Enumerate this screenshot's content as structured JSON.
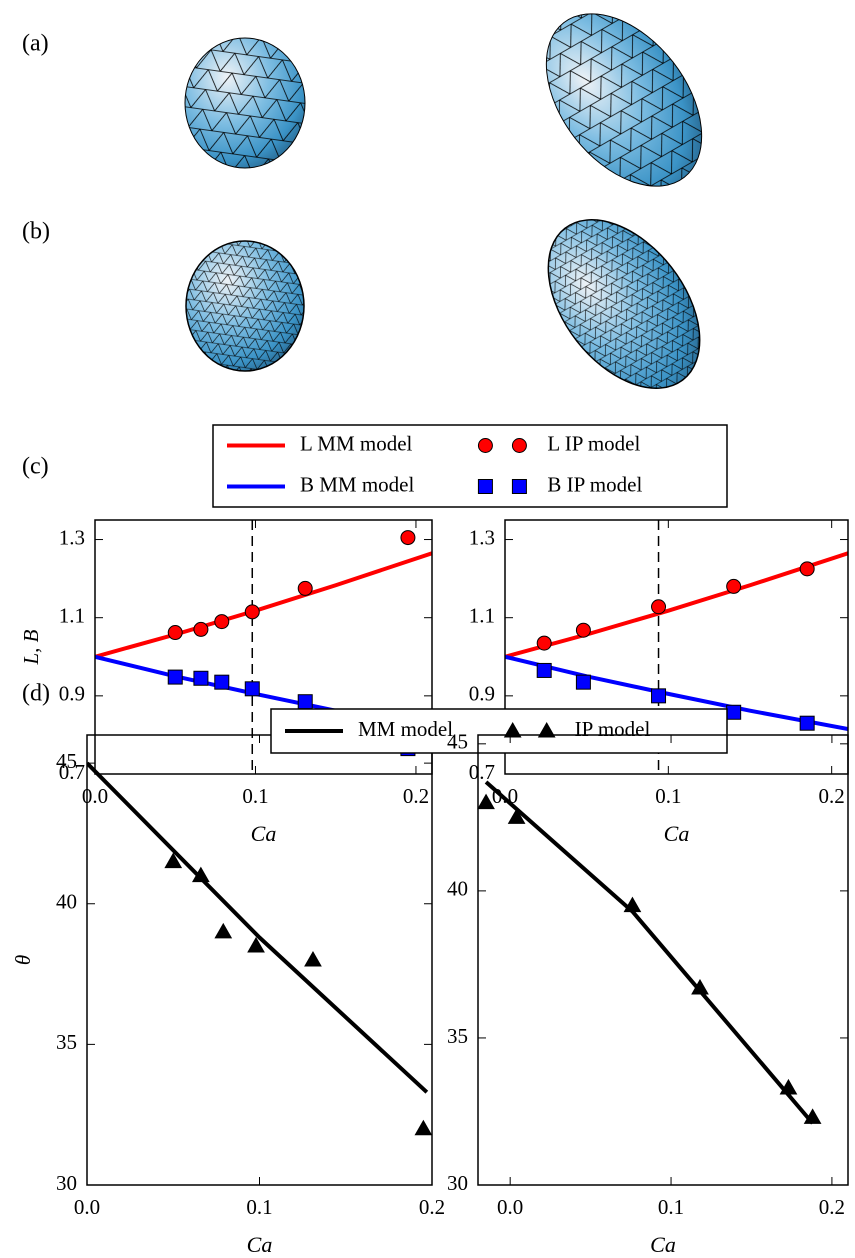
{
  "panel_labels": [
    "(a)",
    "(b)",
    "(c)",
    "(d)"
  ],
  "chart_data": [
    {
      "type": "line",
      "xlabel": "Ca",
      "ylabel": "L, B",
      "legend": true,
      "xlim": [
        0,
        0.21
      ],
      "ylim": [
        0.7,
        1.35
      ],
      "xticks": [
        {
          "value": 0,
          "label": "0.0"
        },
        {
          "value": 0.1,
          "label": "0.1"
        },
        {
          "value": 0.2,
          "label": "0.2"
        }
      ],
      "yticks": [
        0.7,
        0.9,
        1.1,
        1.3
      ],
      "vline": 0.098,
      "series": [
        {
          "name": "L MM model",
          "color": "#ff0000",
          "marker": "line",
          "x": [
            0,
            0.05,
            0.1,
            0.15,
            0.21
          ],
          "values": [
            1.0,
            1.057,
            1.118,
            1.183,
            1.265
          ]
        },
        {
          "name": "B MM model",
          "color": "#0000ff",
          "marker": "line",
          "x": [
            0,
            0.05,
            0.1,
            0.15,
            0.21
          ],
          "values": [
            1.0,
            0.95,
            0.905,
            0.862,
            0.815
          ]
        },
        {
          "name": "L IP model",
          "color": "#ff0000",
          "marker": "circle",
          "x": [
            0.05,
            0.066,
            0.079,
            0.098,
            0.131,
            0.195
          ],
          "values": [
            1.062,
            1.07,
            1.09,
            1.115,
            1.175,
            1.305
          ]
        },
        {
          "name": "B IP model",
          "color": "#0000ff",
          "marker": "square",
          "x": [
            0.05,
            0.066,
            0.079,
            0.098,
            0.131,
            0.195
          ],
          "values": [
            0.948,
            0.945,
            0.935,
            0.918,
            0.885,
            0.765
          ]
        }
      ]
    },
    {
      "type": "line",
      "xlabel": "Ca",
      "xlim": [
        0,
        0.21
      ],
      "ylim": [
        0.7,
        1.35
      ],
      "xticks": [
        {
          "value": 0,
          "label": "0.0"
        },
        {
          "value": 0.1,
          "label": "0.1"
        },
        {
          "value": 0.2,
          "label": "0.2"
        }
      ],
      "yticks": [
        0.7,
        0.9,
        1.1,
        1.3
      ],
      "vline": 0.094,
      "series": [
        {
          "color": "#ff0000",
          "marker": "line",
          "x": [
            0,
            0.05,
            0.1,
            0.15,
            0.21
          ],
          "values": [
            1.0,
            1.057,
            1.118,
            1.183,
            1.265
          ]
        },
        {
          "color": "#0000ff",
          "marker": "line",
          "x": [
            0,
            0.05,
            0.1,
            0.15,
            0.21
          ],
          "values": [
            1.0,
            0.95,
            0.905,
            0.862,
            0.815
          ]
        },
        {
          "color": "#ff0000",
          "marker": "circle",
          "x": [
            0.024,
            0.048,
            0.094,
            0.14,
            0.185
          ],
          "values": [
            1.035,
            1.068,
            1.128,
            1.18,
            1.225
          ]
        },
        {
          "color": "#0000ff",
          "marker": "square",
          "x": [
            0.024,
            0.048,
            0.094,
            0.14,
            0.185
          ],
          "values": [
            0.965,
            0.935,
            0.9,
            0.858,
            0.83
          ]
        }
      ]
    },
    {
      "type": "line",
      "xlabel": "Ca",
      "ylabel": "θ",
      "legend": true,
      "xlim": [
        0,
        0.2
      ],
      "ylim": [
        30,
        46
      ],
      "xticks": [
        {
          "value": 0,
          "label": "0.0"
        },
        {
          "value": 0.1,
          "label": "0.1"
        },
        {
          "value": 0.2,
          "label": "0.2"
        }
      ],
      "yticks": [
        30,
        35,
        40,
        45
      ],
      "series": [
        {
          "name": "MM model",
          "color": "#000000",
          "marker": "line",
          "x": [
            0,
            0.1,
            0.197
          ],
          "values": [
            45,
            38.8,
            33.3
          ]
        },
        {
          "name": "IP model",
          "color": "#000000",
          "marker": "triangle",
          "x": [
            0.05,
            0.066,
            0.079,
            0.098,
            0.131,
            0.195
          ],
          "values": [
            41.5,
            41,
            39,
            38.5,
            38,
            32
          ]
        }
      ]
    },
    {
      "type": "line",
      "xlabel": "Ca",
      "xlim": [
        -0.02,
        0.21
      ],
      "ylim": [
        30,
        45.3
      ],
      "xticks": [
        {
          "value": 0,
          "label": "0.0"
        },
        {
          "value": 0.1,
          "label": "0.1"
        },
        {
          "value": 0.2,
          "label": "0.2"
        }
      ],
      "yticks": [
        30,
        35,
        40,
        45
      ],
      "series": [
        {
          "color": "#000000",
          "marker": "line",
          "x": [
            -0.015,
            0.076,
            0.188
          ],
          "values": [
            43.7,
            39.3,
            32.1
          ]
        },
        {
          "color": "#000000",
          "marker": "triangle",
          "x": [
            -0.015,
            0.004,
            0.076,
            0.118,
            0.173,
            0.188
          ],
          "values": [
            43,
            42.5,
            39.5,
            36.7,
            33.3,
            32.3
          ]
        }
      ]
    }
  ]
}
